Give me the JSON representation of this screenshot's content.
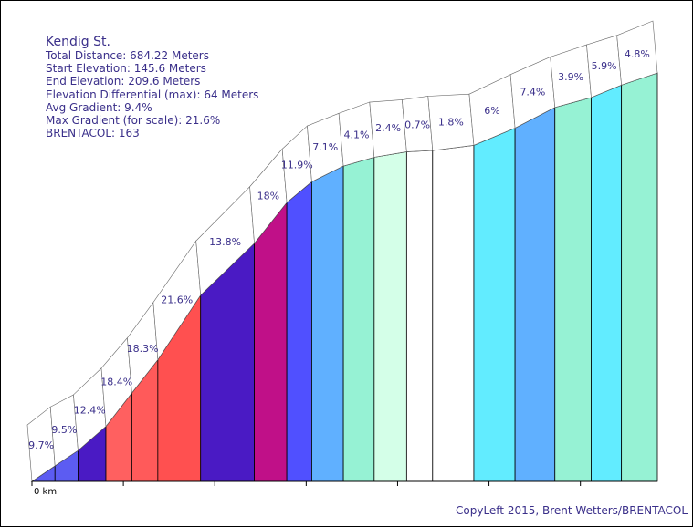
{
  "info": {
    "title": "Kendig St.",
    "total_distance": "Total Distance: 684.22 Meters",
    "start_elevation": "Start Elevation: 145.6 Meters",
    "end_elevation": "End Elevation: 209.6 Meters",
    "elevation_differential": "Elevation Differential (max): 64 Meters",
    "avg_gradient": "Avg Gradient: 9.4%",
    "max_gradient": "Max Gradient (for scale): 21.6%",
    "brentacol": "BRENTACOL: 163"
  },
  "copyleft": "CopyLeft 2015, Brent Wetters/BRENTACOL",
  "chart_data": {
    "type": "area",
    "title": "Kendig St.",
    "xlabel": "",
    "ylabel": "",
    "x_unit": "m",
    "x_tick_labels": [
      "0 km"
    ],
    "x_range": [
      0,
      684.22
    ],
    "y_range": [
      145.6,
      209.6
    ],
    "segments": [
      {
        "start_m": 0.0,
        "end_m": 25.2,
        "gradient_pct": 9.7,
        "label": "9.7%",
        "color": "#5c5cf2"
      },
      {
        "start_m": 25.2,
        "end_m": 50.4,
        "gradient_pct": 9.5,
        "label": "9.5%",
        "color": "#5c5cf2"
      },
      {
        "start_m": 50.4,
        "end_m": 80.9,
        "gradient_pct": 12.4,
        "label": "12.4%",
        "color": "#4a1ac4"
      },
      {
        "start_m": 80.9,
        "end_m": 109.3,
        "gradient_pct": 18.4,
        "label": "18.4%",
        "color": "#ff6060"
      },
      {
        "start_m": 109.3,
        "end_m": 137.7,
        "gradient_pct": 18.3,
        "label": "18.3%",
        "color": "#ff5a5a"
      },
      {
        "start_m": 137.7,
        "end_m": 184.5,
        "gradient_pct": 21.6,
        "label": "21.6%",
        "color": "#ff5050"
      },
      {
        "start_m": 184.5,
        "end_m": 243.3,
        "gradient_pct": 13.8,
        "label": "13.8%",
        "color": "#4a1ac4"
      },
      {
        "start_m": 243.3,
        "end_m": 278.8,
        "gradient_pct": 18.0,
        "label": "18%",
        "color": "#c01088"
      },
      {
        "start_m": 278.8,
        "end_m": 306.1,
        "gradient_pct": 11.9,
        "label": "11.9%",
        "color": "#5050ff"
      },
      {
        "start_m": 306.1,
        "end_m": 340.7,
        "gradient_pct": 7.1,
        "label": "7.1%",
        "color": "#60b0ff"
      },
      {
        "start_m": 340.7,
        "end_m": 374.4,
        "gradient_pct": 4.1,
        "label": "4.1%",
        "color": "#96f2d4"
      },
      {
        "start_m": 374.4,
        "end_m": 409.9,
        "gradient_pct": 2.4,
        "label": "2.4%",
        "color": "#d4ffe8"
      },
      {
        "start_m": 409.9,
        "end_m": 438.3,
        "gradient_pct": 0.7,
        "label": "0.7%",
        "color": "#ffffff"
      },
      {
        "start_m": 438.3,
        "end_m": 483.4,
        "gradient_pct": 1.8,
        "label": "1.8%",
        "color": "#ffffff"
      },
      {
        "start_m": 483.4,
        "end_m": 528.5,
        "gradient_pct": 6.0,
        "label": "6%",
        "color": "#62ecff"
      },
      {
        "start_m": 528.5,
        "end_m": 572.1,
        "gradient_pct": 7.4,
        "label": "7.4%",
        "color": "#60b0ff"
      },
      {
        "start_m": 572.1,
        "end_m": 611.8,
        "gradient_pct": 3.9,
        "label": "3.9%",
        "color": "#96f2d4"
      },
      {
        "start_m": 611.8,
        "end_m": 644.9,
        "gradient_pct": 5.9,
        "label": "5.9%",
        "color": "#62ecff"
      },
      {
        "start_m": 644.9,
        "end_m": 684.22,
        "gradient_pct": 4.8,
        "label": "4.8%",
        "color": "#96f2d4"
      }
    ]
  }
}
